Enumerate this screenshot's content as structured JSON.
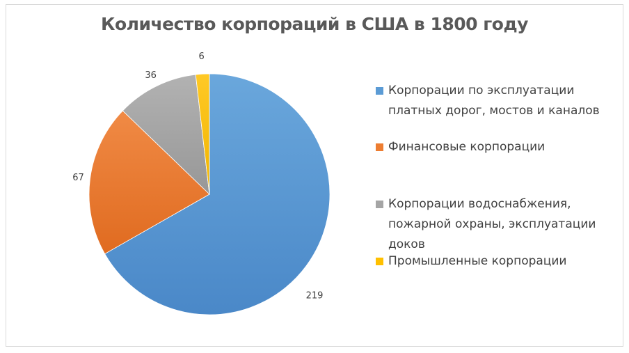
{
  "chart_data": {
    "type": "pie",
    "title": "Количество корпораций в США в 1800 году",
    "categories": [
      "Корпорации по эксплуатации платных дорог, мостов и каналов",
      "Финансовые корпорации",
      "Корпорации водоснабжения, пожарной охраны, эксплуатации доков",
      "Промышленные корпорации"
    ],
    "values": [
      219,
      67,
      36,
      6
    ],
    "colors": [
      "#5b9bd5",
      "#ed7d31",
      "#a5a5a5",
      "#ffc000"
    ],
    "data_labels": [
      "219",
      "67",
      "36",
      "6"
    ],
    "legend_position": "right",
    "start_angle_deg": 0,
    "direction": "clockwise"
  }
}
